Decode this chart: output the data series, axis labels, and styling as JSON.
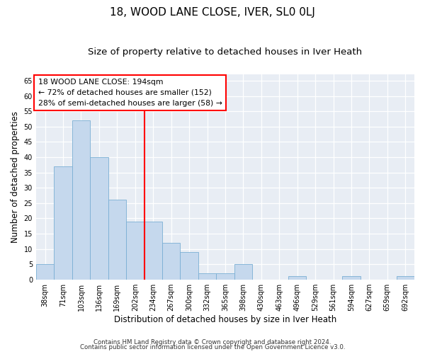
{
  "title": "18, WOOD LANE CLOSE, IVER, SL0 0LJ",
  "subtitle": "Size of property relative to detached houses in Iver Heath",
  "xlabel": "Distribution of detached houses by size in Iver Heath",
  "ylabel": "Number of detached properties",
  "categories": [
    "38sqm",
    "71sqm",
    "103sqm",
    "136sqm",
    "169sqm",
    "202sqm",
    "234sqm",
    "267sqm",
    "300sqm",
    "332sqm",
    "365sqm",
    "398sqm",
    "430sqm",
    "463sqm",
    "496sqm",
    "529sqm",
    "561sqm",
    "594sqm",
    "627sqm",
    "659sqm",
    "692sqm"
  ],
  "values": [
    5,
    37,
    52,
    40,
    26,
    19,
    19,
    12,
    9,
    2,
    2,
    5,
    0,
    0,
    1,
    0,
    0,
    1,
    0,
    0,
    1
  ],
  "bar_color": "#c5d8ed",
  "bar_edge_color": "#7aafd4",
  "vline_color": "red",
  "vline_index": 5.5,
  "annotation_text": "18 WOOD LANE CLOSE: 194sqm\n← 72% of detached houses are smaller (152)\n28% of semi-detached houses are larger (58) →",
  "annotation_box_color": "white",
  "annotation_box_edge": "red",
  "ylim": [
    0,
    67
  ],
  "yticks": [
    0,
    5,
    10,
    15,
    20,
    25,
    30,
    35,
    40,
    45,
    50,
    55,
    60,
    65
  ],
  "footer1": "Contains HM Land Registry data © Crown copyright and database right 2024.",
  "footer2": "Contains public sector information licensed under the Open Government Licence v3.0.",
  "background_color": "#e8edf4",
  "title_fontsize": 11,
  "subtitle_fontsize": 9.5,
  "tick_fontsize": 7,
  "ylabel_fontsize": 8.5,
  "xlabel_fontsize": 8.5,
  "annotation_fontsize": 7.8,
  "footer_fontsize": 6.2
}
